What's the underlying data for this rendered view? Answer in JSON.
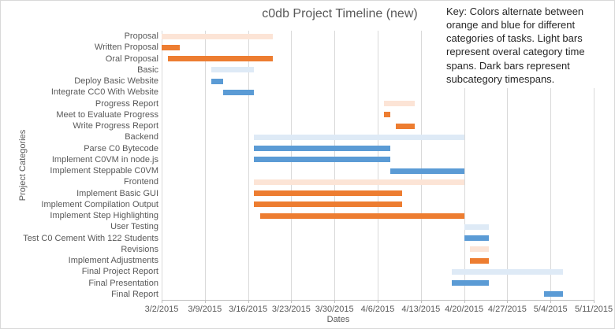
{
  "key_note": {
    "text": "Key: Colors alternate between orange and blue for different categories of tasks. Light bars represent overal category time spans. Dark bars represent subcategory timespans."
  },
  "chart_data": {
    "type": "gantt",
    "title": "c0db Project Timeline (new)",
    "xlabel": "Dates",
    "ylabel": "Project Categories",
    "x_ticks": [
      "3/2/2015",
      "3/9/2015",
      "3/16/2015",
      "3/23/2015",
      "3/30/2015",
      "4/6/2015",
      "4/13/2015",
      "4/20/2015",
      "4/27/2015",
      "5/4/2015",
      "5/11/2015"
    ],
    "x_range": [
      "3/2/2015",
      "5/11/2015"
    ],
    "grid": "vertical weekly gridlines on",
    "legend": "none (explained in key text box, top right)",
    "tasks": [
      {
        "label": "Proposal",
        "start": "3/2/2015",
        "end": "3/20/2015",
        "color": "orange",
        "shade": "light"
      },
      {
        "label": "Written Proposal",
        "start": "3/2/2015",
        "end": "3/5/2015",
        "color": "orange",
        "shade": "dark"
      },
      {
        "label": "Oral Proposal",
        "start": "3/3/2015",
        "end": "3/20/2015",
        "color": "orange",
        "shade": "dark"
      },
      {
        "label": "Basic",
        "start": "3/10/2015",
        "end": "3/17/2015",
        "color": "blue",
        "shade": "light"
      },
      {
        "label": "Deploy Basic Website",
        "start": "3/10/2015",
        "end": "3/12/2015",
        "color": "blue",
        "shade": "dark"
      },
      {
        "label": "Integrate CC0 With Website",
        "start": "3/12/2015",
        "end": "3/17/2015",
        "color": "blue",
        "shade": "dark"
      },
      {
        "label": "Progress Report",
        "start": "4/7/2015",
        "end": "4/12/2015",
        "color": "orange",
        "shade": "light"
      },
      {
        "label": "Meet to Evaluate Progress",
        "start": "4/7/2015",
        "end": "4/8/2015",
        "color": "orange",
        "shade": "dark"
      },
      {
        "label": "Write Progress Report",
        "start": "4/9/2015",
        "end": "4/12/2015",
        "color": "orange",
        "shade": "dark"
      },
      {
        "label": "Backend",
        "start": "3/17/2015",
        "end": "4/20/2015",
        "color": "blue",
        "shade": "light"
      },
      {
        "label": "Parse C0 Bytecode",
        "start": "3/17/2015",
        "end": "4/8/2015",
        "color": "blue",
        "shade": "dark"
      },
      {
        "label": "Implement C0VM in node.js",
        "start": "3/17/2015",
        "end": "4/8/2015",
        "color": "blue",
        "shade": "dark"
      },
      {
        "label": "Implement Steppable C0VM",
        "start": "4/8/2015",
        "end": "4/20/2015",
        "color": "blue",
        "shade": "dark"
      },
      {
        "label": "Frontend",
        "start": "3/17/2015",
        "end": "4/20/2015",
        "color": "orange",
        "shade": "light"
      },
      {
        "label": "Implement Basic GUI",
        "start": "3/17/2015",
        "end": "4/10/2015",
        "color": "orange",
        "shade": "dark"
      },
      {
        "label": "Implement Compilation Output",
        "start": "3/17/2015",
        "end": "4/10/2015",
        "color": "orange",
        "shade": "dark"
      },
      {
        "label": "Implement Step Highlighting",
        "start": "3/18/2015",
        "end": "4/20/2015",
        "color": "orange",
        "shade": "dark"
      },
      {
        "label": "User Testing",
        "start": "4/20/2015",
        "end": "4/24/2015",
        "color": "blue",
        "shade": "light"
      },
      {
        "label": "Test C0 Cement With 122 Students",
        "start": "4/20/2015",
        "end": "4/24/2015",
        "color": "blue",
        "shade": "dark"
      },
      {
        "label": "Revisions",
        "start": "4/21/2015",
        "end": "4/24/2015",
        "color": "orange",
        "shade": "light"
      },
      {
        "label": "Implement Adjustments",
        "start": "4/21/2015",
        "end": "4/24/2015",
        "color": "orange",
        "shade": "dark"
      },
      {
        "label": "Final Project Report",
        "start": "4/18/2015",
        "end": "5/6/2015",
        "color": "blue",
        "shade": "light"
      },
      {
        "label": "Final Presentation",
        "start": "4/18/2015",
        "end": "4/24/2015",
        "color": "blue",
        "shade": "dark"
      },
      {
        "label": "Final Report",
        "start": "5/3/2015",
        "end": "5/6/2015",
        "color": "blue",
        "shade": "dark"
      }
    ],
    "colors": {
      "orange_dark": "#ED7D31",
      "orange_light": "#FCE4D6",
      "blue_dark": "#5B9BD5",
      "blue_light": "#DEEAF6",
      "gridline": "#D9D9D9",
      "axis_line": "#BFBFBF",
      "text": "#595959"
    }
  }
}
